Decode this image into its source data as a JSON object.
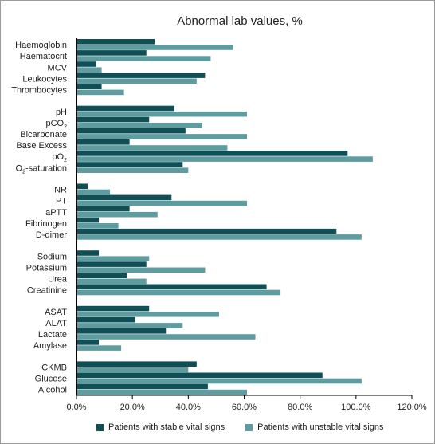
{
  "chart_data": {
    "type": "bar",
    "orientation": "horizontal",
    "title": "Abnormal lab values, %",
    "xlim": [
      0,
      120
    ],
    "xticks": [
      "0.0%",
      "20.0%",
      "40.0%",
      "60.0%",
      "80.0%",
      "100.0%",
      "120.0%"
    ],
    "grid": false,
    "legend_position": "bottom",
    "groups": [
      {
        "categories": [
          "Haemoglobin",
          "Haematocrit",
          "MCV",
          "Leukocytes",
          "Thrombocytes"
        ]
      },
      {
        "categories": [
          "pH",
          "pCO2",
          "Bicarbonate",
          "Base Excess",
          "pO2",
          "O2-saturation"
        ]
      },
      {
        "categories": [
          "INR",
          "PT",
          "aPTT",
          "Fibrinogen",
          "D-dimer"
        ]
      },
      {
        "categories": [
          "Sodium",
          "Potassium",
          "Urea",
          "Creatinine"
        ]
      },
      {
        "categories": [
          "ASAT",
          "ALAT",
          "Lactate",
          "Amylase"
        ]
      },
      {
        "categories": [
          "CKMB",
          "Glucose",
          "Alcohol"
        ]
      }
    ],
    "categories": [
      "Haemoglobin",
      "Haematocrit",
      "MCV",
      "Leukocytes",
      "Thrombocytes",
      "pH",
      "pCO2",
      "Bicarbonate",
      "Base Excess",
      "pO2",
      "O2-saturation",
      "INR",
      "PT",
      "aPTT",
      "Fibrinogen",
      "D-dimer",
      "Sodium",
      "Potassium",
      "Urea",
      "Creatinine",
      "ASAT",
      "ALAT",
      "Lactate",
      "Amylase",
      "CKMB",
      "Glucose",
      "Alcohol"
    ],
    "series": [
      {
        "name": "Patients with stable vital signs",
        "color": "#0f4f55",
        "values": [
          28,
          25,
          7,
          46,
          9,
          35,
          26,
          39,
          19,
          97,
          38,
          4,
          34,
          19,
          8,
          93,
          8,
          25,
          18,
          68,
          26,
          21,
          32,
          8,
          43,
          88,
          47
        ]
      },
      {
        "name": "Patients with unstable vital signs",
        "color": "#5e9ca0",
        "values": [
          56,
          48,
          9,
          43,
          17,
          61,
          45,
          61,
          54,
          106,
          40,
          12,
          61,
          29,
          15,
          102,
          26,
          46,
          25,
          73,
          51,
          38,
          64,
          16,
          40,
          102,
          61
        ]
      }
    ]
  }
}
